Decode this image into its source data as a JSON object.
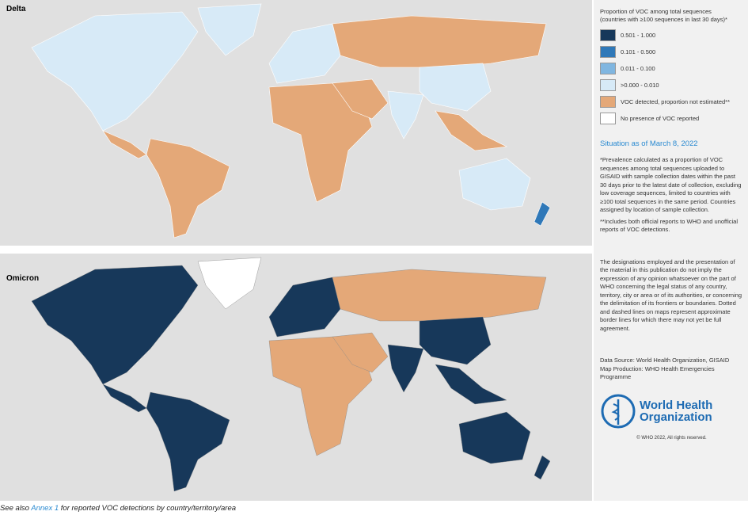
{
  "maps": [
    {
      "label": "Delta"
    },
    {
      "label": "Omicron"
    }
  ],
  "legend": {
    "title": "Proportion of VOC among total sequences",
    "subtitle": "(countries with ≥100 sequences in last 30 days)*",
    "items": [
      {
        "label": "0.501 - 1.000",
        "color": "#17385a"
      },
      {
        "label": "0.101 - 0.500",
        "color": "#2f78b8"
      },
      {
        "label": "0.011 - 0.100",
        "color": "#80b6e0"
      },
      {
        "label": ">0.000 - 0.010",
        "color": "#d7eaf7"
      },
      {
        "label": "VOC detected, proportion not estimated**",
        "color": "#e4a878"
      },
      {
        "label": "No presence of VOC reported",
        "color": "#ffffff"
      }
    ]
  },
  "situation": "Situation as of March 8, 2022",
  "notes": [
    "*Prevalence calculated as a proportion of VOC sequences among total sequences uploaded to GISAID with sample collection dates within the past 30 days prior to the latest date of collection, excluding low coverage sequences, limited to countries with ≥100 total sequences in the same period. Countries assigned by location of sample collection.",
    "**Includes both official reports to WHO and unofficial reports of VOC detections."
  ],
  "disclaimer": "The designations employed and the presentation of the material in this publication do not imply the expression of any opinion whatsoever on the part of WHO concerning the legal status of any country, territory, city or area or of its authorities, or concerning the delimitation of its frontiers or boundaries. Dotted and dashed lines on maps represent approximate border lines for which there may not yet be full agreement.",
  "sources": [
    "Data Source: World Health Organization, GISAID",
    "Map Production: WHO Health Emergencies Programme"
  ],
  "logo": [
    "World Health",
    "Organization"
  ],
  "copyright": "© WHO 2022, All rights reserved.",
  "caption": {
    "prefix": "See also ",
    "link": "Annex 1",
    "suffix": " for reported VOC detections by country/territory/area"
  }
}
